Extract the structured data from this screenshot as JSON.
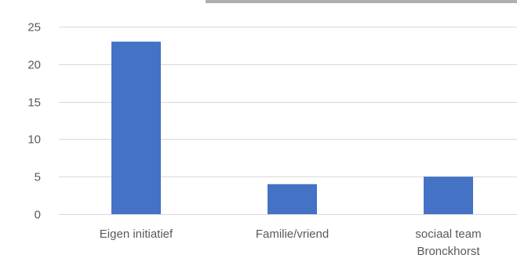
{
  "chart_data": {
    "type": "bar",
    "categories": [
      [
        "Eigen initiatief"
      ],
      [
        "Familie/vriend"
      ],
      [
        "sociaal team",
        "Bronckhorst"
      ]
    ],
    "values": [
      23,
      4,
      5
    ],
    "ylim": [
      0,
      25
    ],
    "yticks": [
      "0",
      "5",
      "10",
      "15",
      "20",
      "25"
    ],
    "grid": true,
    "legend": "none",
    "bar_color": "#4472c4"
  }
}
